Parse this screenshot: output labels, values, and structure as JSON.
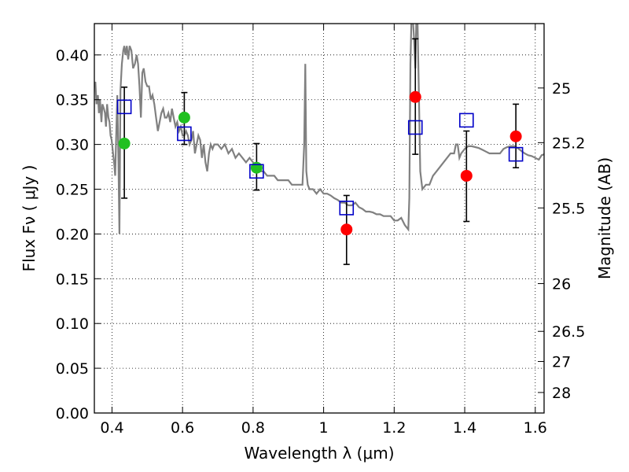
{
  "chart_data": {
    "type": "scatter",
    "title": "",
    "xlabel": "Wavelength  λ (μm)",
    "ylabel": "Flux  Fν  ( μJy )",
    "y2label": "Magnitude (AB)",
    "xlim": [
      0.35,
      1.625
    ],
    "ylim": [
      0.0,
      0.435
    ],
    "grid": true,
    "x_ticks": [
      {
        "v": 0.4,
        "label": "0.4"
      },
      {
        "v": 0.6,
        "label": "0.6"
      },
      {
        "v": 0.8,
        "label": "0.8"
      },
      {
        "v": 1.0,
        "label": "1"
      },
      {
        "v": 1.2,
        "label": "1.2"
      },
      {
        "v": 1.4,
        "label": "1.4"
      },
      {
        "v": 1.6,
        "label": "1.6"
      }
    ],
    "y_ticks": [
      {
        "v": 0.0,
        "label": "0.00"
      },
      {
        "v": 0.05,
        "label": "0.05"
      },
      {
        "v": 0.1,
        "label": "0.10"
      },
      {
        "v": 0.15,
        "label": "0.15"
      },
      {
        "v": 0.2,
        "label": "0.20"
      },
      {
        "v": 0.25,
        "label": "0.25"
      },
      {
        "v": 0.3,
        "label": "0.30"
      },
      {
        "v": 0.35,
        "label": "0.35"
      },
      {
        "v": 0.4,
        "label": "0.40"
      }
    ],
    "y2_ticks": [
      {
        "mag": 25,
        "label": "25"
      },
      {
        "mag": 25.2,
        "label": "25.2"
      },
      {
        "mag": 25.5,
        "label": "25.5"
      },
      {
        "mag": 26,
        "label": "26"
      },
      {
        "mag": 26.5,
        "label": "26.5"
      },
      {
        "mag": 27,
        "label": "27"
      },
      {
        "mag": 28,
        "label": "28"
      }
    ],
    "series": [
      {
        "kind": "line",
        "color": "#808080",
        "points": [
          [
            0.35,
            0.365
          ],
          [
            0.353,
            0.37
          ],
          [
            0.356,
            0.345
          ],
          [
            0.36,
            0.355
          ],
          [
            0.363,
            0.335
          ],
          [
            0.366,
            0.35
          ],
          [
            0.37,
            0.325
          ],
          [
            0.373,
            0.345
          ],
          [
            0.377,
            0.34
          ],
          [
            0.38,
            0.335
          ],
          [
            0.383,
            0.32
          ],
          [
            0.386,
            0.345
          ],
          [
            0.39,
            0.33
          ],
          [
            0.393,
            0.325
          ],
          [
            0.396,
            0.31
          ],
          [
            0.399,
            0.305
          ],
          [
            0.403,
            0.29
          ],
          [
            0.406,
            0.28
          ],
          [
            0.409,
            0.265
          ],
          [
            0.412,
            0.31
          ],
          [
            0.415,
            0.355
          ],
          [
            0.418,
            0.29
          ],
          [
            0.421,
            0.2
          ],
          [
            0.424,
            0.36
          ],
          [
            0.428,
            0.39
          ],
          [
            0.432,
            0.405
          ],
          [
            0.435,
            0.41
          ],
          [
            0.438,
            0.4
          ],
          [
            0.442,
            0.41
          ],
          [
            0.446,
            0.395
          ],
          [
            0.45,
            0.41
          ],
          [
            0.455,
            0.405
          ],
          [
            0.46,
            0.385
          ],
          [
            0.465,
            0.39
          ],
          [
            0.47,
            0.4
          ],
          [
            0.474,
            0.39
          ],
          [
            0.478,
            0.365
          ],
          [
            0.482,
            0.33
          ],
          [
            0.486,
            0.38
          ],
          [
            0.49,
            0.385
          ],
          [
            0.495,
            0.37
          ],
          [
            0.5,
            0.365
          ],
          [
            0.505,
            0.365
          ],
          [
            0.51,
            0.35
          ],
          [
            0.515,
            0.355
          ],
          [
            0.52,
            0.345
          ],
          [
            0.525,
            0.33
          ],
          [
            0.53,
            0.315
          ],
          [
            0.535,
            0.325
          ],
          [
            0.54,
            0.335
          ],
          [
            0.545,
            0.34
          ],
          [
            0.55,
            0.33
          ],
          [
            0.555,
            0.33
          ],
          [
            0.56,
            0.335
          ],
          [
            0.565,
            0.325
          ],
          [
            0.57,
            0.34
          ],
          [
            0.575,
            0.33
          ],
          [
            0.58,
            0.32
          ],
          [
            0.585,
            0.325
          ],
          [
            0.59,
            0.315
          ],
          [
            0.595,
            0.32
          ],
          [
            0.6,
            0.31
          ],
          [
            0.605,
            0.31
          ],
          [
            0.61,
            0.315
          ],
          [
            0.615,
            0.31
          ],
          [
            0.62,
            0.3
          ],
          [
            0.625,
            0.305
          ],
          [
            0.63,
            0.315
          ],
          [
            0.635,
            0.29
          ],
          [
            0.64,
            0.3
          ],
          [
            0.645,
            0.31
          ],
          [
            0.65,
            0.305
          ],
          [
            0.655,
            0.285
          ],
          [
            0.66,
            0.3
          ],
          [
            0.665,
            0.28
          ],
          [
            0.67,
            0.27
          ],
          [
            0.675,
            0.29
          ],
          [
            0.68,
            0.3
          ],
          [
            0.685,
            0.295
          ],
          [
            0.69,
            0.3
          ],
          [
            0.7,
            0.3
          ],
          [
            0.71,
            0.295
          ],
          [
            0.72,
            0.3
          ],
          [
            0.73,
            0.29
          ],
          [
            0.74,
            0.295
          ],
          [
            0.75,
            0.285
          ],
          [
            0.76,
            0.29
          ],
          [
            0.77,
            0.285
          ],
          [
            0.78,
            0.28
          ],
          [
            0.79,
            0.285
          ],
          [
            0.8,
            0.28
          ],
          [
            0.81,
            0.275
          ],
          [
            0.82,
            0.27
          ],
          [
            0.83,
            0.27
          ],
          [
            0.84,
            0.265
          ],
          [
            0.85,
            0.265
          ],
          [
            0.86,
            0.265
          ],
          [
            0.87,
            0.26
          ],
          [
            0.88,
            0.26
          ],
          [
            0.89,
            0.26
          ],
          [
            0.9,
            0.26
          ],
          [
            0.91,
            0.255
          ],
          [
            0.92,
            0.255
          ],
          [
            0.93,
            0.255
          ],
          [
            0.94,
            0.255
          ],
          [
            0.945,
            0.3
          ],
          [
            0.948,
            0.39
          ],
          [
            0.951,
            0.27
          ],
          [
            0.955,
            0.255
          ],
          [
            0.96,
            0.25
          ],
          [
            0.97,
            0.25
          ],
          [
            0.98,
            0.245
          ],
          [
            0.99,
            0.25
          ],
          [
            1.0,
            0.245
          ],
          [
            1.01,
            0.245
          ],
          [
            1.02,
            0.243
          ],
          [
            1.03,
            0.24
          ],
          [
            1.04,
            0.238
          ],
          [
            1.05,
            0.235
          ],
          [
            1.06,
            0.235
          ],
          [
            1.07,
            0.232
          ],
          [
            1.08,
            0.232
          ],
          [
            1.09,
            0.235
          ],
          [
            1.1,
            0.23
          ],
          [
            1.11,
            0.228
          ],
          [
            1.12,
            0.225
          ],
          [
            1.13,
            0.225
          ],
          [
            1.14,
            0.224
          ],
          [
            1.15,
            0.222
          ],
          [
            1.16,
            0.222
          ],
          [
            1.17,
            0.22
          ],
          [
            1.18,
            0.22
          ],
          [
            1.19,
            0.22
          ],
          [
            1.2,
            0.215
          ],
          [
            1.21,
            0.215
          ],
          [
            1.22,
            0.218
          ],
          [
            1.23,
            0.21
          ],
          [
            1.24,
            0.205
          ],
          [
            1.243,
            0.24
          ],
          [
            1.246,
            0.39
          ],
          [
            1.249,
            0.44
          ],
          [
            1.252,
            0.445
          ],
          [
            1.256,
            0.42
          ],
          [
            1.26,
            0.385
          ],
          [
            1.263,
            0.445
          ],
          [
            1.266,
            0.445
          ],
          [
            1.27,
            0.36
          ],
          [
            1.274,
            0.27
          ],
          [
            1.28,
            0.25
          ],
          [
            1.29,
            0.255
          ],
          [
            1.3,
            0.255
          ],
          [
            1.31,
            0.265
          ],
          [
            1.32,
            0.27
          ],
          [
            1.33,
            0.275
          ],
          [
            1.34,
            0.28
          ],
          [
            1.35,
            0.285
          ],
          [
            1.36,
            0.29
          ],
          [
            1.37,
            0.29
          ],
          [
            1.375,
            0.3
          ],
          [
            1.38,
            0.3
          ],
          [
            1.385,
            0.285
          ],
          [
            1.39,
            0.29
          ],
          [
            1.4,
            0.295
          ],
          [
            1.41,
            0.298
          ],
          [
            1.42,
            0.298
          ],
          [
            1.43,
            0.297
          ],
          [
            1.44,
            0.296
          ],
          [
            1.45,
            0.294
          ],
          [
            1.46,
            0.292
          ],
          [
            1.47,
            0.29
          ],
          [
            1.48,
            0.29
          ],
          [
            1.49,
            0.29
          ],
          [
            1.5,
            0.29
          ],
          [
            1.51,
            0.295
          ],
          [
            1.52,
            0.297
          ],
          [
            1.53,
            0.298
          ],
          [
            1.54,
            0.298
          ],
          [
            1.55,
            0.296
          ],
          [
            1.56,
            0.293
          ],
          [
            1.57,
            0.29
          ],
          [
            1.58,
            0.288
          ],
          [
            1.59,
            0.287
          ],
          [
            1.6,
            0.285
          ],
          [
            1.61,
            0.283
          ],
          [
            1.618,
            0.288
          ],
          [
            1.625,
            0.289
          ]
        ]
      },
      {
        "kind": "points",
        "marker": "circle",
        "color": "#20c020",
        "points": [
          [
            0.435,
            0.301
          ],
          [
            0.605,
            0.33
          ],
          [
            0.81,
            0.274
          ]
        ]
      },
      {
        "kind": "points",
        "marker": "circle",
        "color": "#ff0000",
        "points": [
          [
            1.065,
            0.205
          ],
          [
            1.26,
            0.353
          ],
          [
            1.405,
            0.265
          ],
          [
            1.545,
            0.309
          ]
        ]
      },
      {
        "kind": "points",
        "marker": "open-square",
        "color": "#0000c8",
        "points": [
          [
            0.435,
            0.342
          ],
          [
            0.605,
            0.312
          ],
          [
            0.81,
            0.27
          ],
          [
            1.065,
            0.229
          ],
          [
            1.26,
            0.319
          ],
          [
            1.405,
            0.327
          ],
          [
            1.545,
            0.289
          ]
        ]
      }
    ],
    "errorbars": [
      {
        "x": 0.435,
        "low": 0.24,
        "high": 0.364
      },
      {
        "x": 0.605,
        "low": 0.3,
        "high": 0.358
      },
      {
        "x": 0.81,
        "low": 0.249,
        "high": 0.301
      },
      {
        "x": 1.065,
        "low": 0.166,
        "high": 0.243
      },
      {
        "x": 1.26,
        "low": 0.289,
        "high": 0.418
      },
      {
        "x": 1.405,
        "low": 0.214,
        "high": 0.315
      },
      {
        "x": 1.545,
        "low": 0.274,
        "high": 0.345
      }
    ]
  }
}
